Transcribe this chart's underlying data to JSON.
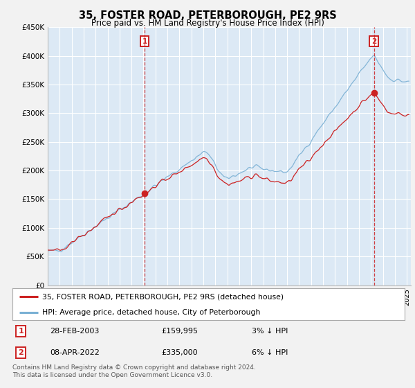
{
  "title": "35, FOSTER ROAD, PETERBOROUGH, PE2 9RS",
  "subtitle": "Price paid vs. HM Land Registry's House Price Index (HPI)",
  "fig_bg_color": "#f2f2f2",
  "plot_bg_color": "#dce9f5",
  "grid_color": "#ffffff",
  "line_hpi_color": "#7ab0d4",
  "line_prop_color": "#cc2222",
  "sale1_price": 159995,
  "sale2_price": 335000,
  "yticks": [
    0,
    50000,
    100000,
    150000,
    200000,
    250000,
    300000,
    350000,
    400000,
    450000
  ],
  "ytick_labels": [
    "£0",
    "£50K",
    "£100K",
    "£150K",
    "£200K",
    "£250K",
    "£300K",
    "£350K",
    "£400K",
    "£450K"
  ],
  "legend_prop": "35, FOSTER ROAD, PETERBOROUGH, PE2 9RS (detached house)",
  "legend_hpi": "HPI: Average price, detached house, City of Peterborough",
  "annot1_date": "28-FEB-2003",
  "annot1_price": "£159,995",
  "annot1_hpi": "3% ↓ HPI",
  "annot2_date": "08-APR-2022",
  "annot2_price": "£335,000",
  "annot2_hpi": "6% ↓ HPI",
  "footer": "Contains HM Land Registry data © Crown copyright and database right 2024.\nThis data is licensed under the Open Government Licence v3.0."
}
